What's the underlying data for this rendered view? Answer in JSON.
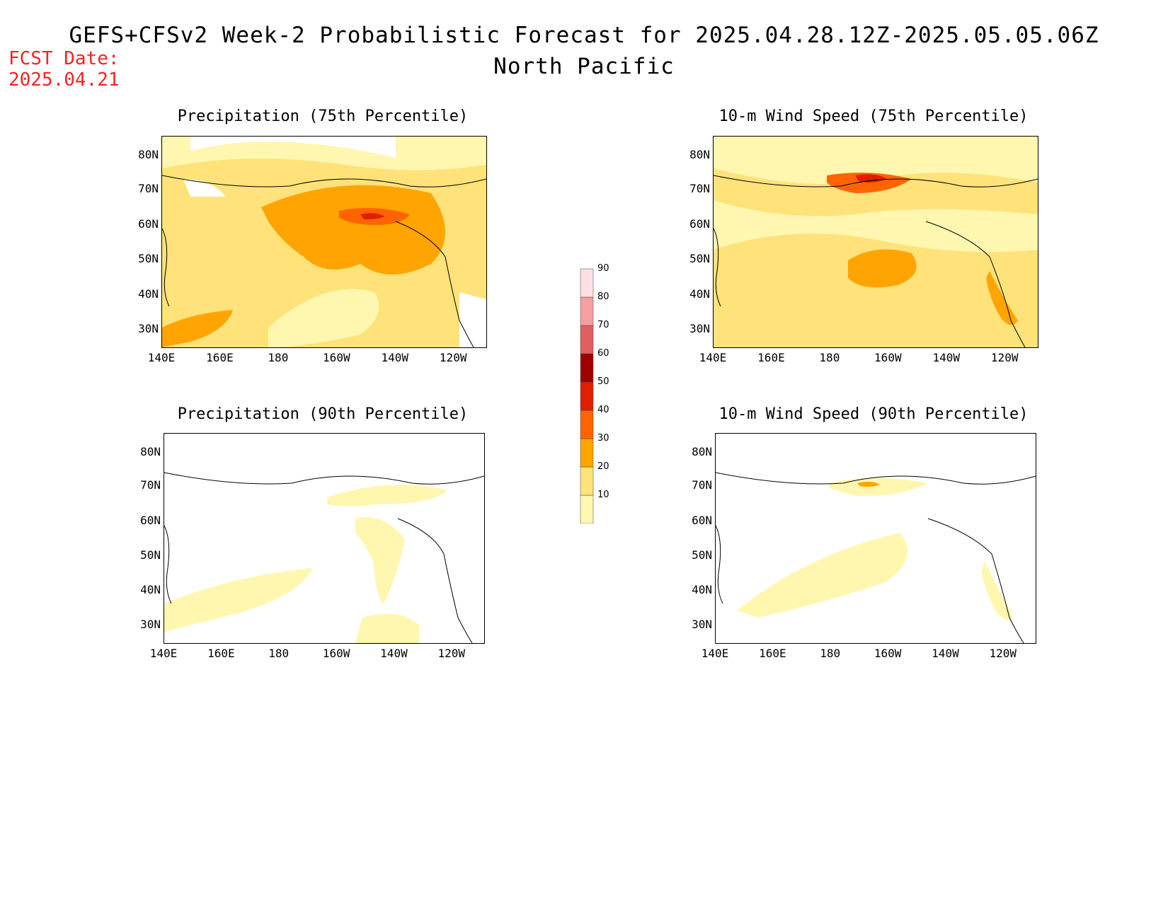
{
  "title_line1": "GEFS+CFSv2 Week-2 Probabilistic Forecast for 2025.04.28.12Z-2025.05.05.06Z",
  "title_line2": "North Pacific",
  "fcst_label": "FCST Date:",
  "fcst_date": "2025.04.21",
  "lat_ticks": [
    "80N",
    "70N",
    "60N",
    "50N",
    "40N",
    "30N"
  ],
  "lon_ticks": [
    "140E",
    "160E",
    "180",
    "160W",
    "140W",
    "120W"
  ],
  "panels": [
    {
      "title": "Precipitation (75th Percentile)"
    },
    {
      "title": "10-m Wind Speed (75th Percentile)"
    },
    {
      "title": "Precipitation (90th Percentile)"
    },
    {
      "title": "10-m Wind Speed (90th Percentile)"
    }
  ],
  "colorbar": {
    "levels": [
      "10",
      "20",
      "30",
      "40",
      "50",
      "60",
      "70",
      "80",
      "90"
    ],
    "colors": [
      "#fff7b0",
      "#ffe27a",
      "#ffa400",
      "#ff6400",
      "#e01e00",
      "#a00000",
      "#e06060",
      "#f4a0a0",
      "#ffe0e0"
    ]
  }
}
